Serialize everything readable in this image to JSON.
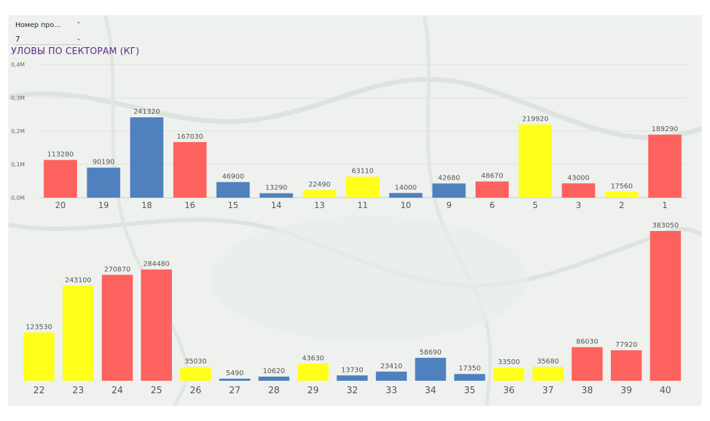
{
  "filter": {
    "label": "Номер про...",
    "value": "7"
  },
  "title": "УЛОВЫ ПО СЕКТОРАМ (КГ)",
  "colors": {
    "red": "#fd625e",
    "blue": "#4e81bd",
    "yellow": "#ffff1a",
    "title": "#5b2a86",
    "label": "#555555"
  },
  "chart_data": [
    {
      "type": "bar",
      "title": "УЛОВЫ ПО СЕКТОРАМ (КГ)",
      "ylim": [
        0,
        400000
      ],
      "yticks": [
        "0,0M",
        "0,1M",
        "0,2M",
        "0,3M",
        "0,4M"
      ],
      "grid": true,
      "categories": [
        "20",
        "19",
        "18",
        "16",
        "15",
        "14",
        "13",
        "11",
        "10",
        "9",
        "6",
        "5",
        "3",
        "2",
        "1"
      ],
      "values": [
        113280,
        90190,
        241320,
        167030,
        46900,
        13290,
        22490,
        63110,
        14000,
        42680,
        48670,
        219920,
        43000,
        17560,
        189290
      ],
      "colors": [
        "red",
        "blue",
        "blue",
        "red",
        "blue",
        "blue",
        "yellow",
        "yellow",
        "blue",
        "blue",
        "red",
        "yellow",
        "red",
        "yellow",
        "red"
      ]
    },
    {
      "type": "bar",
      "ylim": [
        0,
        383050
      ],
      "grid": false,
      "categories": [
        "22",
        "23",
        "24",
        "25",
        "26",
        "27",
        "28",
        "29",
        "32",
        "33",
        "34",
        "35",
        "36",
        "37",
        "38",
        "39",
        "40"
      ],
      "values": [
        123530,
        243100,
        270870,
        284480,
        35030,
        5490,
        10620,
        43630,
        13730,
        23410,
        58690,
        17350,
        33500,
        35680,
        86030,
        77920,
        383050
      ],
      "colors": [
        "yellow",
        "yellow",
        "red",
        "red",
        "yellow",
        "blue",
        "blue",
        "yellow",
        "blue",
        "blue",
        "blue",
        "blue",
        "yellow",
        "yellow",
        "red",
        "red",
        "red"
      ]
    }
  ]
}
